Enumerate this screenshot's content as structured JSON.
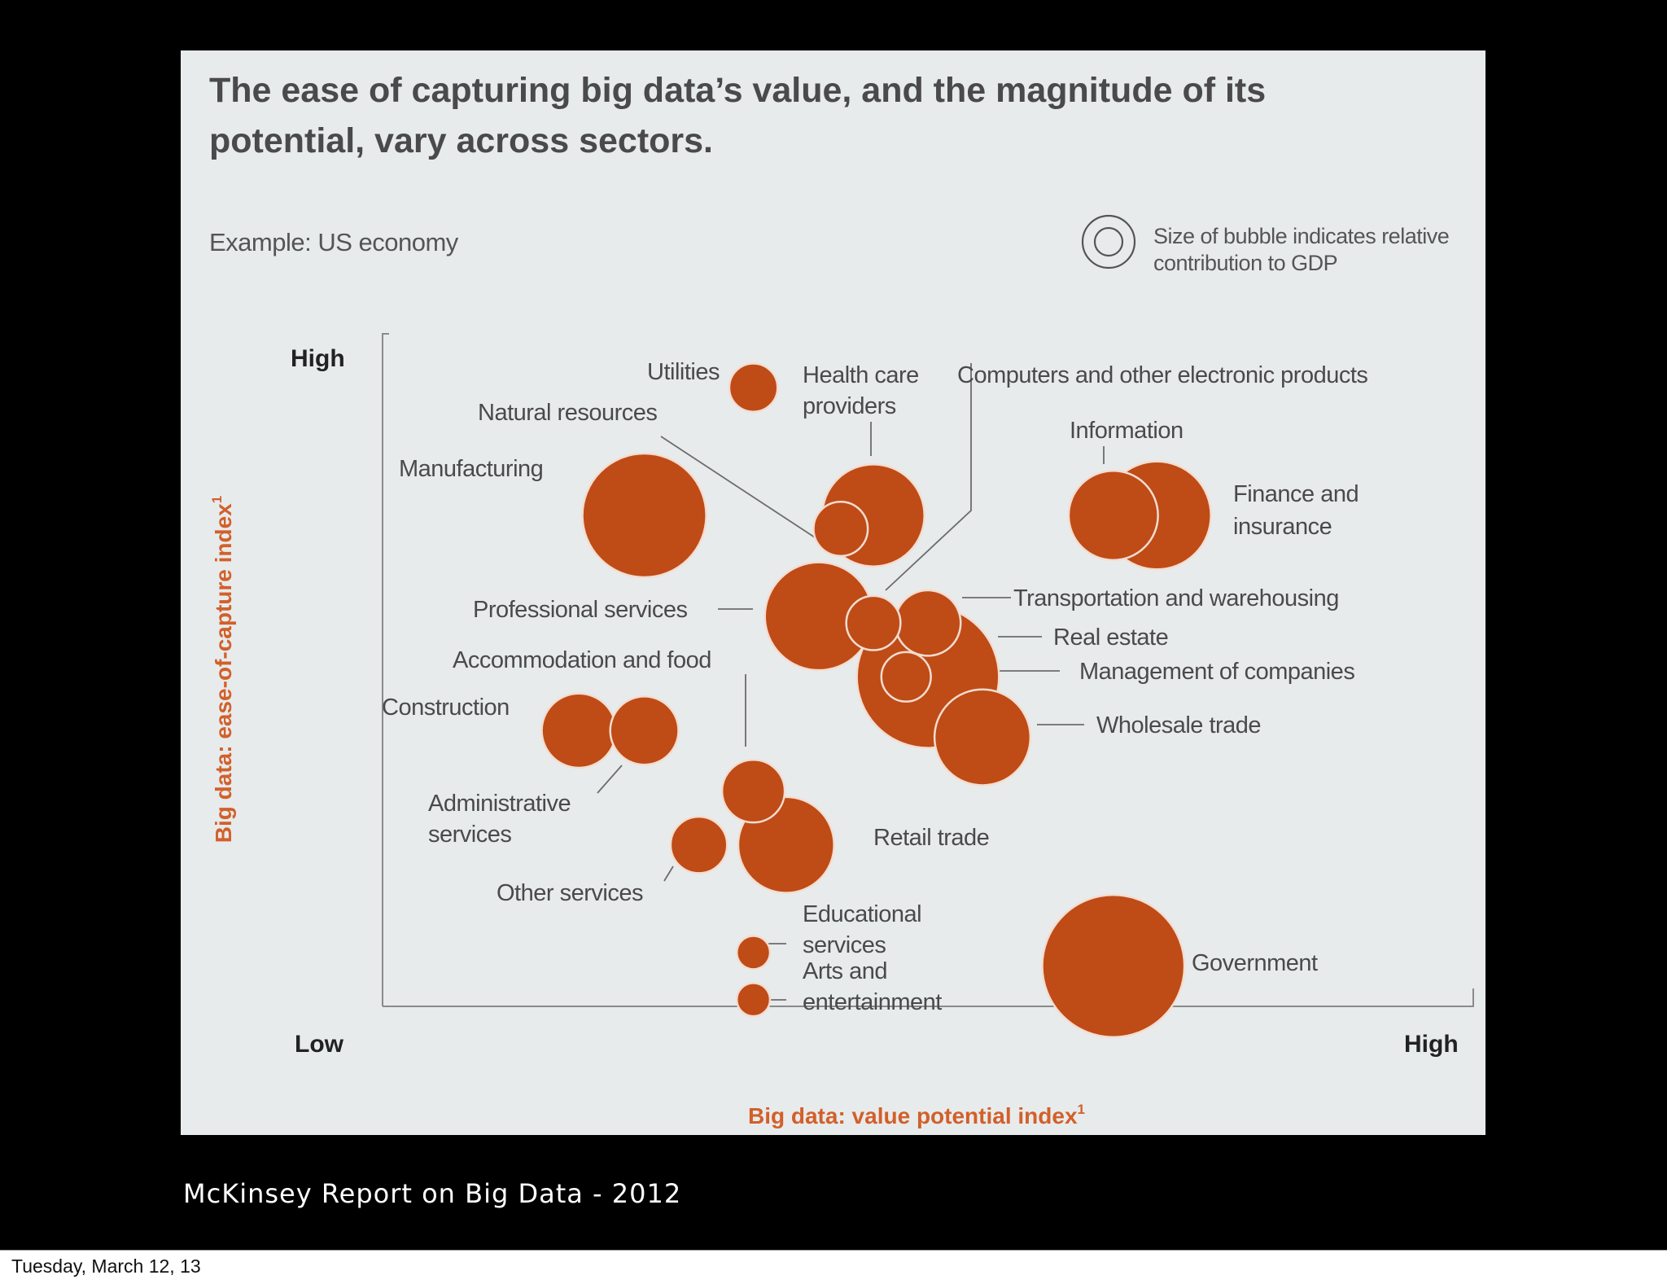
{
  "slide": {
    "caption": "McKinsey Report on Big Data - 2012",
    "footer_date": "Tuesday, March 12, 13"
  },
  "chart_data": {
    "type": "bubble",
    "title": "The ease of capturing big data’s value, and the magnitude of its potential, vary across sectors.",
    "subtitle": "Example: US economy",
    "legend": {
      "text": "Size of bubble indicates relative contribution to GDP",
      "placement": "top-right"
    },
    "xlabel": "Big data: value potential index",
    "xlabel_superscript": "1",
    "ylabel": "Big data: ease-of-capture index",
    "ylabel_superscript": "1",
    "x_ticks": {
      "low": "Low",
      "high": "High"
    },
    "y_ticks": {
      "low": "Low",
      "high": "High"
    },
    "xlim": [
      0,
      100
    ],
    "ylim": [
      0,
      100
    ],
    "grid": false,
    "series": [
      {
        "name": "Utilities",
        "x": 34,
        "y": 92,
        "size": 1.9
      },
      {
        "name": "Natural resources",
        "x": 42,
        "y": 71,
        "size": 2.4
      },
      {
        "name": "Manufacturing",
        "x": 24,
        "y": 73,
        "size": 12.5
      },
      {
        "name": "Health care providers",
        "x": 45,
        "y": 73,
        "size": 8.5
      },
      {
        "name": "Computers and other electronic products",
        "x": 45,
        "y": 57,
        "size": 2.4
      },
      {
        "name": "Information",
        "x": 67,
        "y": 73,
        "size": 6.5
      },
      {
        "name": "Finance and insurance",
        "x": 71,
        "y": 73,
        "size": 9.5
      },
      {
        "name": "Professional services",
        "x": 40,
        "y": 58,
        "size": 9.5
      },
      {
        "name": "Transportation and warehousing",
        "x": 50,
        "y": 57,
        "size": 3.5
      },
      {
        "name": "Real estate",
        "x": 50,
        "y": 49,
        "size": 16.5
      },
      {
        "name": "Management of companies",
        "x": 48,
        "y": 49,
        "size": 2.0
      },
      {
        "name": "Wholesale trade",
        "x": 55,
        "y": 40,
        "size": 7.5
      },
      {
        "name": "Accommodation and food",
        "x": 34,
        "y": 32,
        "size": 3.2
      },
      {
        "name": "Construction",
        "x": 18,
        "y": 41,
        "size": 4.5
      },
      {
        "name": "Administrative services",
        "x": 24,
        "y": 41,
        "size": 3.8
      },
      {
        "name": "Other services",
        "x": 29,
        "y": 24,
        "size": 2.6
      },
      {
        "name": "Retail trade",
        "x": 37,
        "y": 24,
        "size": 7.5
      },
      {
        "name": "Educational services",
        "x": 34,
        "y": 8,
        "size": 0.9
      },
      {
        "name": "Arts and entertainment",
        "x": 34,
        "y": 1,
        "size": 0.9
      },
      {
        "name": "Government",
        "x": 67,
        "y": 6,
        "size": 16.5
      }
    ]
  },
  "colors": {
    "bubble": "#bf4b17",
    "bubble_stroke": "#f3ddd0",
    "panel": "#e8ebec",
    "axis_title": "#d2602a",
    "text": "#4a4a4a",
    "leader": "#6c6c6c"
  }
}
